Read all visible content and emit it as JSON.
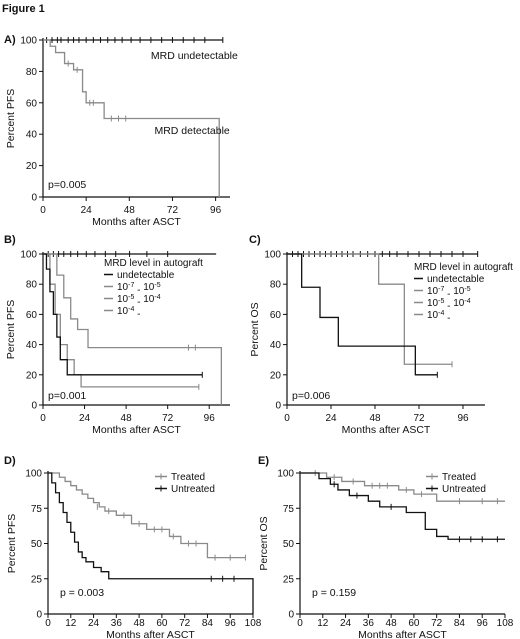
{
  "figure_title": "Figure 1",
  "colors": {
    "dark": "#111111",
    "gray": "#8a8a8a",
    "axis": "#111111"
  },
  "chart_data": [
    {
      "id": "A",
      "type": "line",
      "panel_label": "A)",
      "xlabel": "Months after ASCT",
      "ylabel": "Percent PFS",
      "xlim": [
        0,
        104
      ],
      "ylim": [
        0,
        100
      ],
      "xticks": [
        0,
        24,
        48,
        72,
        96
      ],
      "yticks": [
        0,
        20,
        40,
        60,
        80,
        100
      ],
      "grid": false,
      "pvalue": "p=0.005",
      "annotations": [
        {
          "text": "MRD undetectable",
          "x": 60,
          "y": 88
        },
        {
          "text": "MRD detectable",
          "x": 62,
          "y": 40
        }
      ],
      "series": [
        {
          "color": "#111111",
          "x": [
            0,
            100
          ],
          "y": [
            100,
            100
          ],
          "censors": [
            [
              2,
              100
            ],
            [
              5,
              100
            ],
            [
              8,
              100
            ],
            [
              10,
              100
            ],
            [
              14,
              100
            ],
            [
              17,
              100
            ],
            [
              20,
              100
            ],
            [
              24,
              100
            ],
            [
              28,
              100
            ],
            [
              32,
              100
            ],
            [
              36,
              100
            ],
            [
              40,
              100
            ],
            [
              44,
              100
            ],
            [
              49,
              100
            ],
            [
              54,
              100
            ],
            [
              60,
              100
            ],
            [
              66,
              100
            ],
            [
              72,
              100
            ],
            [
              78,
              100
            ],
            [
              84,
              100
            ],
            [
              90,
              100
            ],
            [
              100,
              100
            ]
          ]
        },
        {
          "color": "#8a8a8a",
          "x": [
            0,
            4,
            7,
            12,
            17,
            22,
            24,
            30,
            34,
            96,
            98
          ],
          "y": [
            100,
            96,
            92,
            85,
            81,
            67,
            60,
            60,
            50,
            50,
            0
          ],
          "censors": [
            [
              14,
              85
            ],
            [
              19,
              81
            ],
            [
              26,
              60
            ],
            [
              28,
              60
            ],
            [
              38,
              50
            ],
            [
              42,
              50
            ],
            [
              46,
              50
            ]
          ]
        }
      ]
    },
    {
      "id": "B",
      "type": "line",
      "panel_label": "B)",
      "xlabel": "Months after ASCT",
      "ylabel": "Percent PFS",
      "xlim": [
        0,
        108
      ],
      "ylim": [
        0,
        100
      ],
      "xticks": [
        0,
        24,
        48,
        72,
        96
      ],
      "yticks": [
        0,
        20,
        40,
        60,
        80,
        100
      ],
      "grid": false,
      "pvalue": "p=0.001",
      "legend_title": "MRD level in autograft",
      "legend": [
        {
          "label": "undetectable",
          "color": "#111111"
        },
        {
          "label": "10-7 - 10-5",
          "base1": "10",
          "exp1": "-7",
          "mid": " - ",
          "base2": "10",
          "exp2": "-5",
          "color": "#8a8a8a"
        },
        {
          "label": "10-5 - 10-4",
          "base1": "10",
          "exp1": "-5",
          "mid": " - ",
          "base2": "10",
          "exp2": "-4",
          "color": "#8a8a8a"
        },
        {
          "label": "10-4 -",
          "base1": "10",
          "exp1": "-4",
          "mid": " -",
          "base2": "",
          "exp2": "",
          "color": "#8a8a8a"
        }
      ],
      "series": [
        {
          "color": "#111111",
          "x": [
            0,
            100
          ],
          "y": [
            100,
            100
          ],
          "censors": [
            [
              3,
              100
            ],
            [
              6,
              100
            ],
            [
              9,
              100
            ],
            [
              12,
              100
            ],
            [
              16,
              100
            ],
            [
              20,
              100
            ],
            [
              25,
              100
            ],
            [
              30,
              100
            ],
            [
              36,
              100
            ],
            [
              42,
              100
            ],
            [
              50,
              100
            ],
            [
              60,
              100
            ],
            [
              72,
              100
            ]
          ]
        },
        {
          "color": "#8a8a8a",
          "x": [
            0,
            8,
            12,
            16,
            20,
            26,
            100,
            103
          ],
          "y": [
            100,
            86,
            71,
            57,
            50,
            38,
            38,
            0
          ],
          "censors": [
            [
              84,
              38
            ],
            [
              88,
              38
            ]
          ]
        },
        {
          "color": "#8a8a8a",
          "x": [
            0,
            4,
            7,
            10,
            14,
            18,
            22,
            90
          ],
          "y": [
            100,
            80,
            60,
            40,
            30,
            20,
            12,
            12
          ],
          "censors": [
            [
              90,
              12
            ]
          ]
        },
        {
          "color": "#111111",
          "x": [
            0,
            2,
            4,
            6,
            8,
            10,
            14,
            18,
            92
          ],
          "y": [
            100,
            90,
            75,
            60,
            45,
            30,
            20,
            20,
            20
          ],
          "censors": [
            [
              92,
              20
            ]
          ]
        }
      ]
    },
    {
      "id": "C",
      "type": "line",
      "panel_label": "C)",
      "xlabel": "Months after ASCT",
      "ylabel": "Percent OS",
      "xlim": [
        0,
        108
      ],
      "ylim": [
        0,
        100
      ],
      "xticks": [
        0,
        24,
        48,
        72,
        96
      ],
      "yticks": [
        0,
        20,
        40,
        60,
        80,
        100
      ],
      "grid": false,
      "pvalue": "p=0.006",
      "legend_title": "MRD level in autograft",
      "legend": [
        {
          "label": "undetectable",
          "color": "#111111"
        },
        {
          "label": "10-7 - 10-5",
          "base1": "10",
          "exp1": "-7",
          "mid": " - ",
          "base2": "10",
          "exp2": "-5",
          "color": "#8a8a8a"
        },
        {
          "label": "10-5 - 10-4",
          "base1": "10",
          "exp1": "-5",
          "mid": " - ",
          "base2": "10",
          "exp2": "-4",
          "color": "#8a8a8a"
        },
        {
          "label": "10-4 -",
          "base1": "10",
          "exp1": "-4",
          "mid": " -",
          "base2": "",
          "exp2": "",
          "color": "#8a8a8a"
        }
      ],
      "series": [
        {
          "color": "#111111",
          "x": [
            0,
            104
          ],
          "y": [
            100,
            100
          ],
          "censors": [
            [
              3,
              100
            ],
            [
              6,
              100
            ],
            [
              9,
              100
            ],
            [
              12,
              100
            ],
            [
              15,
              100
            ],
            [
              18,
              100
            ],
            [
              21,
              100
            ],
            [
              24,
              100
            ],
            [
              27,
              100
            ],
            [
              30,
              100
            ],
            [
              33,
              100
            ],
            [
              36,
              100
            ],
            [
              40,
              100
            ],
            [
              44,
              100
            ],
            [
              48,
              100
            ],
            [
              52,
              100
            ],
            [
              56,
              100
            ],
            [
              60,
              100
            ],
            [
              66,
              100
            ],
            [
              72,
              100
            ],
            [
              78,
              100
            ],
            [
              84,
              100
            ],
            [
              90,
              100
            ],
            [
              96,
              100
            ],
            [
              104,
              100
            ]
          ]
        },
        {
          "color": "#8a8a8a",
          "x": [
            0,
            40,
            50,
            60,
            64,
            90
          ],
          "y": [
            100,
            100,
            80,
            80,
            27,
            27
          ],
          "censors": [
            [
              90,
              27
            ]
          ]
        },
        {
          "color": "#111111",
          "x": [
            0,
            8,
            14,
            18,
            28,
            68,
            70,
            82
          ],
          "y": [
            100,
            78,
            78,
            58,
            39,
            39,
            20,
            20
          ],
          "censors": [
            [
              82,
              20
            ]
          ]
        }
      ]
    },
    {
      "id": "D",
      "type": "line",
      "panel_label": "D)",
      "xlabel": "Months after ASCT",
      "ylabel": "Percent PFS",
      "xlim": [
        0,
        108
      ],
      "ylim": [
        0,
        100
      ],
      "xticks": [
        0,
        12,
        24,
        36,
        48,
        60,
        72,
        84,
        96,
        108
      ],
      "yticks": [
        0,
        25,
        50,
        75,
        100
      ],
      "grid": false,
      "pvalue": "p = 0.003",
      "legend": [
        {
          "name": "Treated",
          "color": "#8a8a8a"
        },
        {
          "name": "Untreated",
          "color": "#111111"
        }
      ],
      "series": [
        {
          "name": "Treated",
          "color": "#8a8a8a",
          "x": [
            0,
            6,
            9,
            12,
            15,
            18,
            21,
            24,
            27,
            30,
            36,
            44,
            52,
            64,
            70,
            84,
            104
          ],
          "y": [
            100,
            97,
            94,
            91,
            88,
            85,
            82,
            79,
            76,
            73,
            70,
            64,
            60,
            55,
            50,
            40,
            40
          ],
          "censors": [
            [
              26,
              76
            ],
            [
              32,
              73
            ],
            [
              40,
              70
            ],
            [
              48,
              64
            ],
            [
              56,
              60
            ],
            [
              60,
              60
            ],
            [
              66,
              55
            ],
            [
              74,
              50
            ],
            [
              78,
              50
            ],
            [
              88,
              40
            ],
            [
              96,
              40
            ],
            [
              104,
              40
            ]
          ]
        },
        {
          "name": "Untreated",
          "color": "#111111",
          "x": [
            0,
            2,
            4,
            6,
            8,
            10,
            12,
            14,
            16,
            18,
            20,
            24,
            28,
            32,
            108,
            108
          ],
          "y": [
            100,
            93,
            86,
            79,
            72,
            65,
            58,
            51,
            44,
            40,
            37,
            33,
            30,
            25,
            25,
            0
          ],
          "censors": [
            [
              86,
              25
            ],
            [
              92,
              25
            ],
            [
              98,
              25
            ]
          ]
        }
      ]
    },
    {
      "id": "E",
      "type": "line",
      "panel_label": "E)",
      "xlabel": "Months after ASCT",
      "ylabel": "Percent OS",
      "xlim": [
        0,
        108
      ],
      "ylim": [
        0,
        100
      ],
      "xticks": [
        0,
        12,
        24,
        36,
        48,
        60,
        72,
        84,
        96,
        108
      ],
      "yticks": [
        0,
        25,
        50,
        75,
        100
      ],
      "grid": false,
      "pvalue": "p = 0.159",
      "legend": [
        {
          "name": "Treated",
          "color": "#8a8a8a"
        },
        {
          "name": "Untreated",
          "color": "#111111"
        }
      ],
      "series": [
        {
          "name": "Treated",
          "color": "#8a8a8a",
          "x": [
            0,
            14,
            22,
            34,
            52,
            60,
            72,
            108
          ],
          "y": [
            100,
            97,
            94,
            91,
            88,
            85,
            80,
            80
          ],
          "censors": [
            [
              8,
              100
            ],
            [
              18,
              97
            ],
            [
              28,
              94
            ],
            [
              38,
              91
            ],
            [
              42,
              91
            ],
            [
              46,
              91
            ],
            [
              56,
              88
            ],
            [
              64,
              85
            ],
            [
              84,
              80
            ],
            [
              96,
              80
            ],
            [
              104,
              80
            ]
          ]
        },
        {
          "name": "Untreated",
          "color": "#111111",
          "x": [
            0,
            10,
            16,
            20,
            26,
            36,
            42,
            56,
            66,
            72,
            78,
            108
          ],
          "y": [
            100,
            96,
            92,
            88,
            84,
            80,
            76,
            72,
            60,
            55,
            53,
            53
          ],
          "censors": [
            [
              18,
              92
            ],
            [
              30,
              84
            ],
            [
              48,
              76
            ],
            [
              84,
              53
            ],
            [
              90,
              53
            ],
            [
              96,
              53
            ],
            [
              104,
              53
            ]
          ]
        }
      ]
    }
  ]
}
